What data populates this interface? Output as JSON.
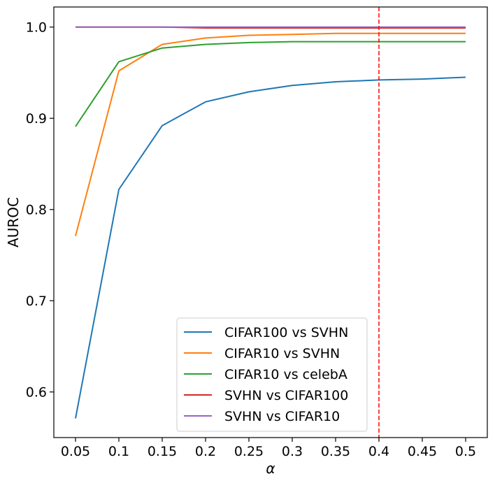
{
  "chart_data": {
    "type": "line",
    "title": "",
    "xlabel": "α",
    "ylabel": "AUROC",
    "x": [
      0.05,
      0.1,
      0.15,
      0.2,
      0.25,
      0.3,
      0.35,
      0.4,
      0.45,
      0.5
    ],
    "x_tick_labels": [
      "0.05",
      "0.1",
      "0.15",
      "0.2",
      "0.25",
      "0.3",
      "0.35",
      "0.4",
      "0.45",
      "0.5"
    ],
    "y_ticks": [
      0.6,
      0.7,
      0.8,
      0.9,
      1.0
    ],
    "y_tick_labels": [
      "0.6",
      "0.7",
      "0.8",
      "0.9",
      "1.0"
    ],
    "xlim": [
      0.025,
      0.525
    ],
    "ylim": [
      0.55,
      1.022
    ],
    "grid": false,
    "legend_position": "bottom-center",
    "series": [
      {
        "name": "CIFAR100 vs SVHN",
        "color": "#1f77b4",
        "values": [
          0.571,
          0.822,
          0.892,
          0.918,
          0.929,
          0.936,
          0.94,
          0.942,
          0.943,
          0.945
        ]
      },
      {
        "name": "CIFAR10 vs SVHN",
        "color": "#ff7f0e",
        "values": [
          0.771,
          0.952,
          0.981,
          0.988,
          0.991,
          0.992,
          0.993,
          0.993,
          0.993,
          0.993
        ]
      },
      {
        "name": "CIFAR10 vs celebA",
        "color": "#2ca02c",
        "values": [
          0.891,
          0.962,
          0.977,
          0.981,
          0.983,
          0.984,
          0.984,
          0.984,
          0.984,
          0.984
        ]
      },
      {
        "name": "SVHN vs CIFAR100",
        "color": "#d62728",
        "values": [
          1.0,
          1.0,
          1.0,
          0.999,
          0.999,
          0.999,
          0.999,
          0.999,
          0.999,
          0.999
        ]
      },
      {
        "name": "SVHN vs CIFAR10",
        "color": "#9467bd",
        "values": [
          1.0,
          1.0,
          1.0,
          1.0,
          1.0,
          1.0,
          1.0,
          1.0,
          1.0,
          1.0
        ]
      }
    ],
    "annotations": [
      {
        "type": "vertical-dashed-line",
        "x": 0.4,
        "color": "#ff0000"
      }
    ]
  }
}
